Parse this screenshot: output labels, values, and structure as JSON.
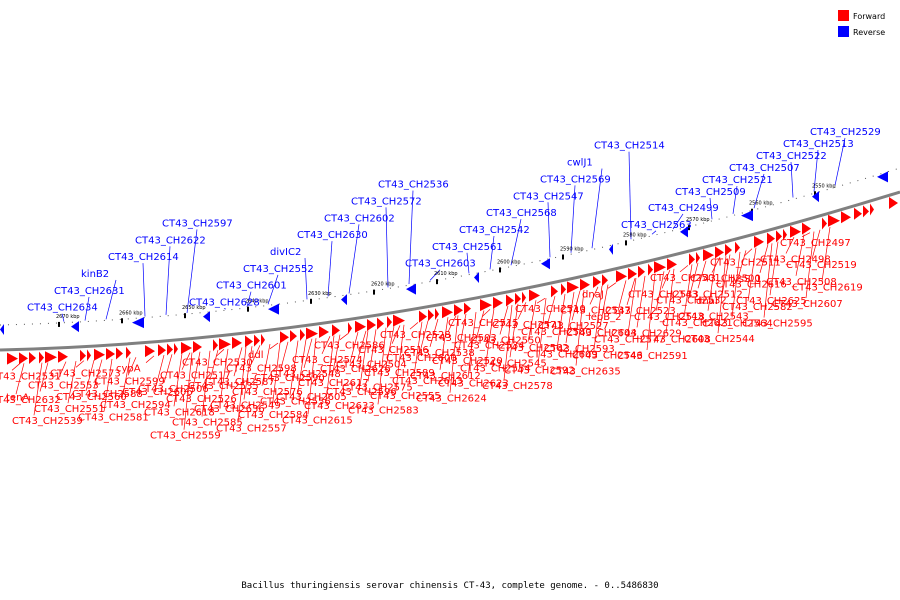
{
  "caption": "Bacillus thuringiensis serovar chinensis CT-43, complete genome. - 0..5486830",
  "legend": [
    {
      "label": "Forward",
      "color": "#ff0000"
    },
    {
      "label": "Reverse",
      "color": "#0000ff"
    }
  ],
  "colors": {
    "forward": "#ff0000",
    "reverse": "#0000ff",
    "axis": "#808080"
  },
  "ticks": [
    "2550 kbp",
    "2560 kbp",
    "2570 kbp",
    "2580 kbp",
    "2590 kbp",
    "2600 kbp",
    "2610 kbp",
    "2620 kbp",
    "2630 kbp",
    "2640 kbp",
    "2650 kbp",
    "2660 kbp",
    "2670 kbp"
  ],
  "reverse_labels": [
    "CT43_CH2529",
    "CT43_CH2513",
    "CT43_CH2522",
    "CT43_CH2507",
    "CT43_CH2521",
    "CT43_CH2509",
    "CT43_CH2499",
    "CT43_CH2563",
    "CT43_CH2514",
    "cwlJ1",
    "CT43_CH2569",
    "CT43_CH2547",
    "CT43_CH2568",
    "CT43_CH2542",
    "CT43_CH2561",
    "CT43_CH2603",
    "CT43_CH2536",
    "CT43_CH2572",
    "CT43_CH2602",
    "CT43_CH2630",
    "divIC2",
    "CT43_CH2552",
    "CT43_CH2601",
    "CT43_CH2628",
    "CT43_CH2597",
    "CT43_CH2622",
    "CT43_CH2614",
    "kinB2",
    "CT43_CH2631",
    "CT43_CH2634"
  ],
  "forward_labels": [
    "CT43_CH2497",
    "CT43_CH2498",
    "lysS_1",
    "CT43_CH2511",
    "CT43_CH2500",
    "CT43_CH2512",
    "CT43_CH2501",
    "CT43_CH2533",
    "CT43_CH2523",
    "dnaJ",
    "CT43_CH2537",
    "CT43_CH2527",
    "CT43_CH2510",
    "CT43_CH2571",
    "CT43_CH2550",
    "CT43_CH2515",
    "CT43_CH2503",
    "CT43_CH2538",
    "CT43_CH2528",
    "CT43_CH2516",
    "CT43_CH2504",
    "CT43_CH2586",
    "CT43_CH2574",
    "CT43_CH2548",
    "ddl",
    "CT43_CH2598",
    "CT43_CH2587",
    "CT43_CH2530",
    "CT43_CH2517",
    "CT43_CH2506",
    "cypA",
    "CT43_CH2599",
    "CT43_CH2588",
    "CT43_CH2573",
    "CT43_CH2553",
    "tenA",
    "CT43_CH2531",
    "CT43_CH2519",
    "CT43_CH2508",
    "CT43_CH2625",
    "CT43_CH2616",
    "dnaI",
    "CT43_CH2543",
    "CT43_CH2532",
    "CT43_CH2518",
    "CT43_CH2629",
    "lepB_2",
    "CT43_CH2604",
    "CT43_CH2593",
    "CT43_CH2580",
    "CT43_CH2562",
    "CT43_CH2545",
    "CT43_CH2534",
    "CT43_CH2520",
    "CT43_CH2612",
    "CT43_CH2600",
    "CT43_CH2589",
    "CT43_CH2575",
    "CT43_CH2626",
    "CT43_CH2617",
    "CT43_CH2605",
    "CT43_CH2590",
    "CT43_CH2576",
    "CT43_CH2549",
    "CT43_CH2535",
    "CT43_CH2526",
    "CT43_CH2618",
    "CT43_CH2606",
    "CT43_CH2594",
    "CT43_CH2581",
    "CT43_CH2560",
    "CT43_CH2551",
    "CT43_CH2539",
    "CT43_CH2632",
    "CT43_CH2619",
    "CT43_CH2607",
    "CT43_CH2595",
    "CT43_CH2582",
    "CT43_CH2564",
    "CT43_CH2544",
    "CT43_CH2621",
    "CT43_CH2608",
    "CT43_CH2591",
    "CT43_CH2577",
    "CT43_CH2546",
    "CT43_CH2635",
    "CT43_CH2609",
    "CT43_CH2592",
    "CT43_CH2578",
    "CT43_CH2554",
    "CT43_CH2623",
    "CT43_CH2624",
    "CT43_CH2613",
    "CT43_CH2555",
    "CT43_CH2583",
    "CT43_CH2596",
    "CT43_CH2633",
    "CT43_CH2615",
    "CT43_CH2556",
    "CT43_CH2584",
    "CT43_CH2557",
    "CT43_CH2636",
    "CT43_CH2585",
    "CT43_CH2559"
  ]
}
